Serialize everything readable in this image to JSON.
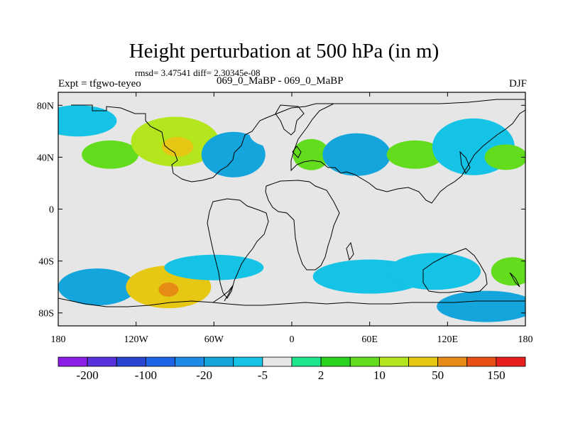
{
  "title": "Height perturbation at 500 hPa (in m)",
  "stats": "rmsd= 3.47541 diff= 2.30345e-08",
  "experiment": "Expt = tfgwo-teyeo",
  "cases": "069_0_MaBP - 069_0_MaBP",
  "season": "DJF",
  "chart_data": {
    "type": "heatmap",
    "title": "Height perturbation at 500 hPa (in m)",
    "xlabel": "",
    "ylabel": "",
    "xlim": [
      -180,
      180
    ],
    "ylim": [
      -90,
      90
    ],
    "x_ticks": [
      {
        "value": -180,
        "label": "180"
      },
      {
        "value": -120,
        "label": "120W"
      },
      {
        "value": -60,
        "label": "60W"
      },
      {
        "value": 0,
        "label": "0"
      },
      {
        "value": 60,
        "label": "60E"
      },
      {
        "value": 120,
        "label": "120E"
      },
      {
        "value": 180,
        "label": "180"
      }
    ],
    "y_ticks": [
      {
        "value": 80,
        "label": "80N"
      },
      {
        "value": 40,
        "label": "40N"
      },
      {
        "value": 0,
        "label": "0"
      },
      {
        "value": -40,
        "label": "40S"
      },
      {
        "value": -80,
        "label": "80S"
      }
    ],
    "colorbar": {
      "levels": [
        -200,
        -150,
        -100,
        -50,
        -20,
        -10,
        -5,
        -2,
        2,
        5,
        10,
        20,
        50,
        100,
        150,
        200
      ],
      "colors": [
        "#8c1ee6",
        "#5a32dc",
        "#2846d2",
        "#1e64e6",
        "#1e8ce6",
        "#14a5dc",
        "#14c3e6",
        "#e6e6e6",
        "#1ee68c",
        "#28d21e",
        "#64dc1e",
        "#b4e61e",
        "#e6c814",
        "#e68c14",
        "#e65014",
        "#e61e1e"
      ],
      "labels": [
        {
          "value": -200,
          "label": "-200"
        },
        {
          "value": -100,
          "label": "-100"
        },
        {
          "value": -20,
          "label": "-20"
        },
        {
          "value": -5,
          "label": "-5"
        },
        {
          "value": 2,
          "label": "2"
        },
        {
          "value": 10,
          "label": "10"
        },
        {
          "value": 50,
          "label": "50"
        },
        {
          "value": 150,
          "label": "150"
        }
      ]
    },
    "field": [
      {
        "lon": -165,
        "lat": 68,
        "value": -6,
        "name": "blob-np-blue-1"
      },
      {
        "lon": -140,
        "lat": 42,
        "value": 8,
        "name": "blob-npac-green"
      },
      {
        "lon": -90,
        "lat": 52,
        "value": 18,
        "name": "blob-namerica-green"
      },
      {
        "lon": -88,
        "lat": 48,
        "value": 45,
        "name": "blob-namerica-yellow"
      },
      {
        "lon": -45,
        "lat": 42,
        "value": -12,
        "name": "blob-natl-blue"
      },
      {
        "lon": -15,
        "lat": 58,
        "value": -5,
        "name": "blob-natl-blue-2"
      },
      {
        "lon": 15,
        "lat": 42,
        "value": 6,
        "name": "blob-europe-green"
      },
      {
        "lon": 50,
        "lat": 42,
        "value": -12,
        "name": "blob-asia-blue"
      },
      {
        "lon": 95,
        "lat": 42,
        "value": 6,
        "name": "blob-asia-green"
      },
      {
        "lon": 140,
        "lat": 48,
        "value": -10,
        "name": "blob-npac-blue"
      },
      {
        "lon": 165,
        "lat": 40,
        "value": 8,
        "name": "blob-dateline-green"
      },
      {
        "lon": -150,
        "lat": -60,
        "value": -15,
        "name": "blob-spac-blue"
      },
      {
        "lon": -95,
        "lat": -60,
        "value": 22,
        "name": "blob-spac-green"
      },
      {
        "lon": -95,
        "lat": -62,
        "value": 60,
        "name": "blob-spac-yellow"
      },
      {
        "lon": -60,
        "lat": -45,
        "value": -8,
        "name": "blob-satl-blue"
      },
      {
        "lon": 60,
        "lat": -52,
        "value": -7,
        "name": "blob-sio-blue"
      },
      {
        "lon": 110,
        "lat": -48,
        "value": -6,
        "name": "blob-aus-blue"
      },
      {
        "lon": 150,
        "lat": -75,
        "value": -15,
        "name": "blob-ant-blue"
      },
      {
        "lon": 170,
        "lat": -48,
        "value": 8,
        "name": "blob-nz-green"
      }
    ]
  }
}
